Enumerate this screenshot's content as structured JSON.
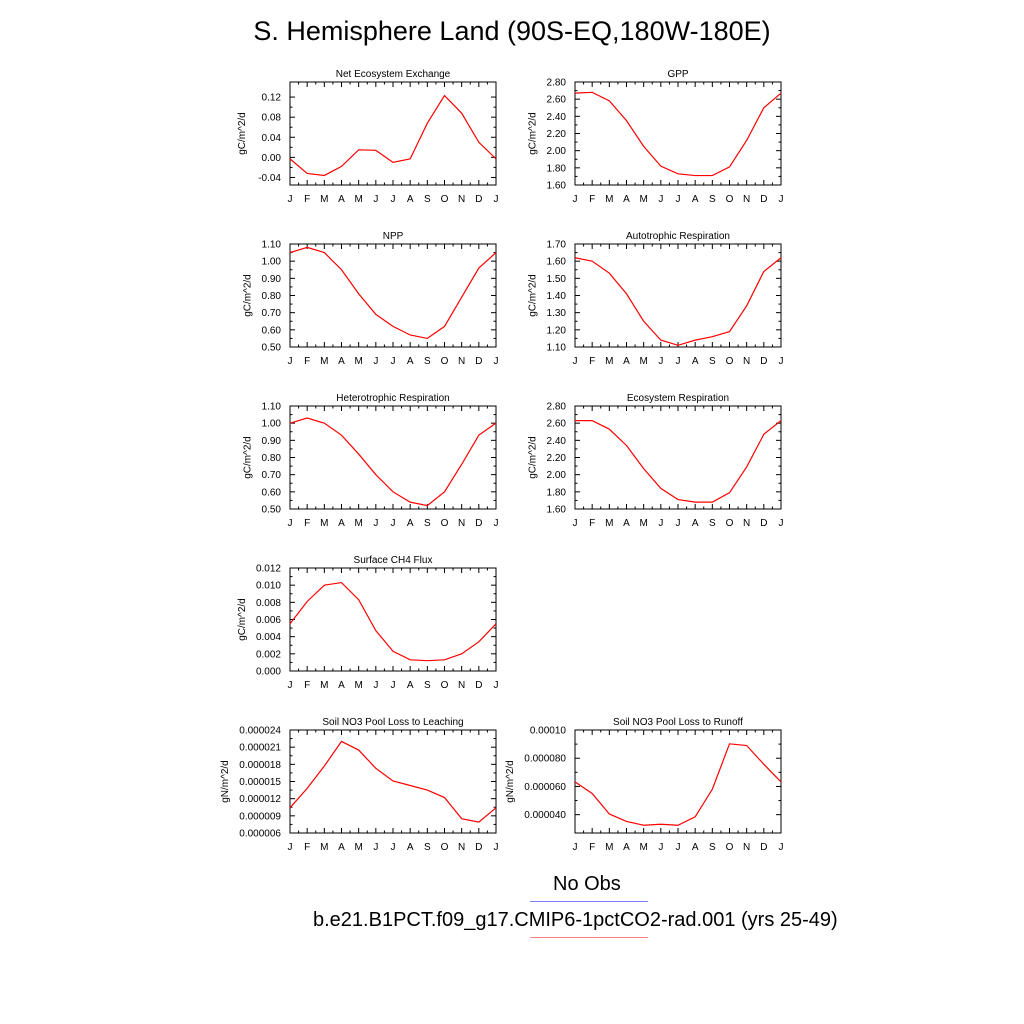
{
  "title": "S. Hemisphere Land (90S-EQ,180W-180E)",
  "months": [
    "J",
    "F",
    "M",
    "A",
    "M",
    "J",
    "J",
    "A",
    "S",
    "O",
    "N",
    "D",
    "J"
  ],
  "legend": {
    "obs_label": "No Obs",
    "obs_color": "#0000ff",
    "model_label": "b.e21.B1PCT.f09_g17.CMIP6-1pctCO2-rad.001 (yrs 25-49)",
    "model_color": "#ff0000"
  },
  "chart_data": [
    {
      "type": "line",
      "title": "Net Ecosystem Exchange",
      "ylabel": "gC/m^2/d",
      "ylim": [
        -0.055,
        0.15
      ],
      "yticks": [
        -0.04,
        0.0,
        0.04,
        0.08,
        0.12
      ],
      "tick_labels": [
        "-0.04",
        "0.00",
        "0.04",
        "0.08",
        "0.12"
      ],
      "values": [
        -0.003,
        -0.032,
        -0.036,
        -0.018,
        0.015,
        0.014,
        -0.01,
        -0.003,
        0.068,
        0.123,
        0.088,
        0.03,
        -0.003
      ]
    },
    {
      "type": "line",
      "title": "GPP",
      "ylabel": "gC/m^2/d",
      "ylim": [
        1.6,
        2.8
      ],
      "yticks": [
        1.6,
        1.8,
        2.0,
        2.2,
        2.4,
        2.6,
        2.8
      ],
      "tick_labels": [
        "1.60",
        "1.80",
        "2.00",
        "2.20",
        "2.40",
        "2.60",
        "2.80"
      ],
      "values": [
        2.67,
        2.68,
        2.58,
        2.35,
        2.05,
        1.82,
        1.73,
        1.71,
        1.71,
        1.81,
        2.12,
        2.5,
        2.67
      ]
    },
    {
      "type": "line",
      "title": "NPP",
      "ylabel": "gC/m^2/d",
      "ylim": [
        0.5,
        1.1
      ],
      "yticks": [
        0.5,
        0.6,
        0.7,
        0.8,
        0.9,
        1.0,
        1.1
      ],
      "tick_labels": [
        "0.50",
        "0.60",
        "0.70",
        "0.80",
        "0.90",
        "1.00",
        "1.10"
      ],
      "values": [
        1.05,
        1.08,
        1.05,
        0.95,
        0.81,
        0.69,
        0.62,
        0.57,
        0.55,
        0.62,
        0.79,
        0.96,
        1.05
      ]
    },
    {
      "type": "line",
      "title": "Autotrophic Respiration",
      "ylabel": "gC/m^2/d",
      "ylim": [
        1.1,
        1.7
      ],
      "yticks": [
        1.1,
        1.2,
        1.3,
        1.4,
        1.5,
        1.6,
        1.7
      ],
      "tick_labels": [
        "1.10",
        "1.20",
        "1.30",
        "1.40",
        "1.50",
        "1.60",
        "1.70"
      ],
      "values": [
        1.62,
        1.6,
        1.53,
        1.41,
        1.25,
        1.14,
        1.11,
        1.14,
        1.16,
        1.19,
        1.34,
        1.54,
        1.62
      ]
    },
    {
      "type": "line",
      "title": "Heterotrophic Respiration",
      "ylabel": "gC/m^2/d",
      "ylim": [
        0.5,
        1.1
      ],
      "yticks": [
        0.5,
        0.6,
        0.7,
        0.8,
        0.9,
        1.0,
        1.1
      ],
      "tick_labels": [
        "0.50",
        "0.60",
        "0.70",
        "0.80",
        "0.90",
        "1.00",
        "1.10"
      ],
      "values": [
        1.0,
        1.03,
        1.0,
        0.93,
        0.82,
        0.7,
        0.6,
        0.54,
        0.52,
        0.6,
        0.76,
        0.93,
        1.0
      ]
    },
    {
      "type": "line",
      "title": "Ecosystem Respiration",
      "ylabel": "gC/m^2/d",
      "ylim": [
        1.6,
        2.8
      ],
      "yticks": [
        1.6,
        1.8,
        2.0,
        2.2,
        2.4,
        2.6,
        2.8
      ],
      "tick_labels": [
        "1.60",
        "1.80",
        "2.00",
        "2.20",
        "2.40",
        "2.60",
        "2.80"
      ],
      "values": [
        2.63,
        2.63,
        2.53,
        2.34,
        2.07,
        1.84,
        1.71,
        1.68,
        1.68,
        1.79,
        2.09,
        2.47,
        2.63
      ]
    },
    {
      "type": "line",
      "title": "Surface CH4 Flux",
      "ylabel": "gC/m^2/d",
      "ylim": [
        0.0,
        0.012
      ],
      "yticks": [
        0.0,
        0.002,
        0.004,
        0.006,
        0.008,
        0.01,
        0.012
      ],
      "tick_labels": [
        "0.000",
        "0.002",
        "0.004",
        "0.006",
        "0.008",
        "0.010",
        "0.012"
      ],
      "values": [
        0.0055,
        0.0081,
        0.01,
        0.0103,
        0.0083,
        0.0047,
        0.0023,
        0.0013,
        0.0012,
        0.0013,
        0.002,
        0.0034,
        0.0055
      ]
    },
    {
      "type": "line",
      "title": "Soil NO3 Pool Loss to Leaching",
      "ylabel": "gN/m^2/d",
      "ylim": [
        6e-06,
        2.4e-05
      ],
      "yticks": [
        6e-06,
        9e-06,
        1.2e-05,
        1.5e-05,
        1.8e-05,
        2.1e-05,
        2.4e-05
      ],
      "tick_labels": [
        "0.000006",
        "0.000009",
        "0.000012",
        "0.000015",
        "0.000018",
        "0.000021",
        "0.000024"
      ],
      "values": [
        1.04e-05,
        1.38e-05,
        1.77e-05,
        2.2e-05,
        2.05e-05,
        1.73e-05,
        1.51e-05,
        1.43e-05,
        1.35e-05,
        1.22e-05,
        8.5e-06,
        7.9e-06,
        1.04e-05
      ]
    },
    {
      "type": "line",
      "title": "Soil NO3 Pool Loss to Runoff",
      "ylabel": "gN/m^2/d",
      "ylim": [
        2.7e-05,
        0.0001
      ],
      "yticks": [
        4e-05,
        6e-05,
        8e-05,
        0.0001
      ],
      "tick_labels": [
        "0.000040",
        "0.000060",
        "0.000080",
        "0.00010"
      ],
      "values": [
        6.32e-05,
        5.5e-05,
        4.05e-05,
        3.52e-05,
        3.25e-05,
        3.32e-05,
        3.25e-05,
        3.85e-05,
        5.8e-05,
        9.02e-05,
        8.9e-05,
        7.57e-05,
        6.32e-05
      ]
    }
  ]
}
